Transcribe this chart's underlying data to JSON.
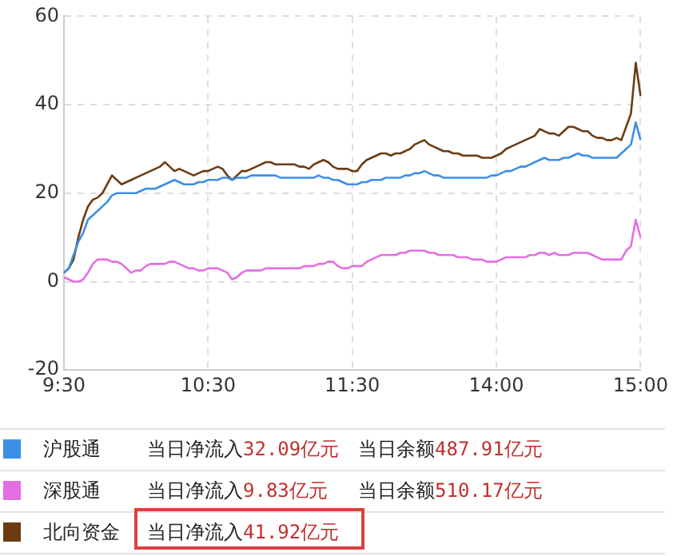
{
  "chart_data": {
    "type": "line",
    "categories": [
      "9:30",
      null,
      null,
      null,
      null,
      null,
      null,
      null,
      null,
      null,
      null,
      null,
      null,
      null,
      null,
      null,
      null,
      null,
      null,
      null,
      null,
      null,
      null,
      null,
      null,
      null,
      null,
      null,
      null,
      null,
      "10:30",
      null,
      null,
      null,
      null,
      null,
      null,
      null,
      null,
      null,
      null,
      null,
      null,
      null,
      null,
      null,
      null,
      null,
      null,
      null,
      null,
      null,
      null,
      null,
      null,
      null,
      null,
      null,
      null,
      null,
      "11:30",
      null,
      null,
      null,
      null,
      null,
      null,
      null,
      null,
      null,
      null,
      null,
      null,
      null,
      null,
      null,
      null,
      null,
      null,
      null,
      null,
      null,
      null,
      null,
      null,
      null,
      null,
      null,
      null,
      null,
      "14:00",
      null,
      null,
      null,
      null,
      null,
      null,
      null,
      null,
      null,
      null,
      null,
      null,
      null,
      null,
      null,
      null,
      null,
      null,
      null,
      null,
      null,
      null,
      null,
      null,
      null,
      null,
      null,
      null,
      null,
      "15:00"
    ],
    "ylim": [
      -20,
      60
    ],
    "yticks": [
      -20,
      0,
      20,
      40,
      60
    ],
    "grid": true,
    "legend": "bottom",
    "marker": "none",
    "line_style": "solid",
    "series": [
      {
        "name": "沪股通",
        "color": "#3d8fe6",
        "values": [
          2,
          3,
          6,
          9,
          11,
          14,
          15,
          16,
          17,
          18,
          19.5,
          20,
          20,
          20,
          20,
          20,
          20.5,
          21,
          21,
          21,
          21.5,
          22,
          22.5,
          23,
          22.5,
          22,
          22,
          22,
          22.5,
          22.5,
          23,
          23,
          23,
          23.5,
          23.5,
          23,
          23.5,
          23.5,
          23.5,
          24,
          24,
          24,
          24,
          24,
          24,
          23.5,
          23.5,
          23.5,
          23.5,
          23.5,
          23.5,
          23.5,
          23.5,
          24,
          23.5,
          23.5,
          23,
          23,
          22.5,
          22,
          22,
          22,
          22.5,
          22.5,
          23,
          23,
          23,
          23.5,
          23.5,
          23.5,
          23.5,
          24,
          24,
          24.5,
          24.5,
          25,
          24.5,
          24,
          24,
          23.5,
          23.5,
          23.5,
          23.5,
          23.5,
          23.5,
          23.5,
          23.5,
          23.5,
          23.5,
          24,
          24,
          24.5,
          25,
          25,
          25.5,
          26,
          26,
          26.5,
          27,
          27.5,
          28,
          27.5,
          27.5,
          27.5,
          28,
          28,
          28.5,
          29,
          28.5,
          28.5,
          28,
          28,
          28,
          28,
          28,
          28,
          29,
          30,
          31,
          36,
          32
        ]
      },
      {
        "name": "深股通",
        "color": "#e36ee3",
        "values": [
          1,
          0.5,
          0,
          0,
          0.5,
          2,
          4,
          5,
          5,
          5,
          4.5,
          4.5,
          4,
          3,
          2,
          2.5,
          2.5,
          3.5,
          4,
          4,
          4,
          4,
          4.5,
          4.5,
          4,
          3.5,
          3,
          3,
          2.5,
          2.5,
          3,
          3,
          3,
          2.5,
          2,
          0.5,
          1,
          2,
          2.5,
          2.5,
          2.5,
          2.5,
          3,
          3,
          3,
          3,
          3,
          3,
          3,
          3,
          3.5,
          3.5,
          3.5,
          4,
          4,
          4.5,
          4.5,
          3.5,
          3,
          3,
          3.5,
          3.5,
          3.5,
          4.5,
          5,
          5.5,
          6,
          6,
          6,
          6,
          6.5,
          6.5,
          7,
          7,
          7,
          7,
          6.5,
          6.5,
          6,
          6,
          6,
          6,
          5.5,
          5.5,
          5.5,
          5,
          5,
          5,
          4.5,
          4.5,
          4.5,
          5,
          5.5,
          5.5,
          5.5,
          5.5,
          5.5,
          6,
          6,
          6.5,
          6.5,
          6,
          6.5,
          6,
          6,
          6,
          6.5,
          6.5,
          6.5,
          6.5,
          6,
          5.5,
          5,
          5,
          5,
          5,
          5,
          7,
          8,
          14,
          10
        ]
      },
      {
        "name": "北向资金",
        "color": "#6b3c12",
        "values": [
          2,
          3,
          5,
          10,
          14,
          17,
          18.5,
          19,
          20,
          22,
          24,
          23,
          22,
          22.5,
          23,
          23.5,
          24,
          24.5,
          25,
          25.5,
          26,
          27,
          26,
          25,
          25.5,
          25,
          24.5,
          24,
          24.5,
          25,
          25,
          25.5,
          26,
          25.5,
          24,
          23,
          24,
          25,
          25,
          25.5,
          26,
          26.5,
          27,
          27,
          26.5,
          26.5,
          26.5,
          26.5,
          26.5,
          26,
          26,
          25.5,
          26.5,
          27,
          27.5,
          27,
          26,
          25.5,
          25.5,
          25.5,
          25,
          25,
          26.5,
          27.5,
          28,
          28.5,
          29,
          29,
          28.5,
          29,
          29,
          29.5,
          30,
          31,
          31.5,
          32,
          31,
          30.5,
          30,
          29.5,
          29.5,
          29,
          29,
          28.5,
          28.5,
          28.5,
          28.5,
          28,
          28,
          28,
          28.5,
          29,
          30,
          30.5,
          31,
          31.5,
          32,
          32.5,
          33,
          34.5,
          34,
          33.5,
          33.5,
          33,
          34,
          35,
          35,
          34.5,
          34,
          34,
          33,
          32.5,
          32.5,
          32,
          32,
          32.5,
          32,
          35,
          38,
          49.5,
          42
        ]
      }
    ],
    "annotations": [
      "当日净流入32.09亿元",
      "当日余额487.91亿元",
      "当日净流入9.83亿元",
      "当日余额510.17亿元",
      "当日净流入41.92亿元"
    ]
  }
}
